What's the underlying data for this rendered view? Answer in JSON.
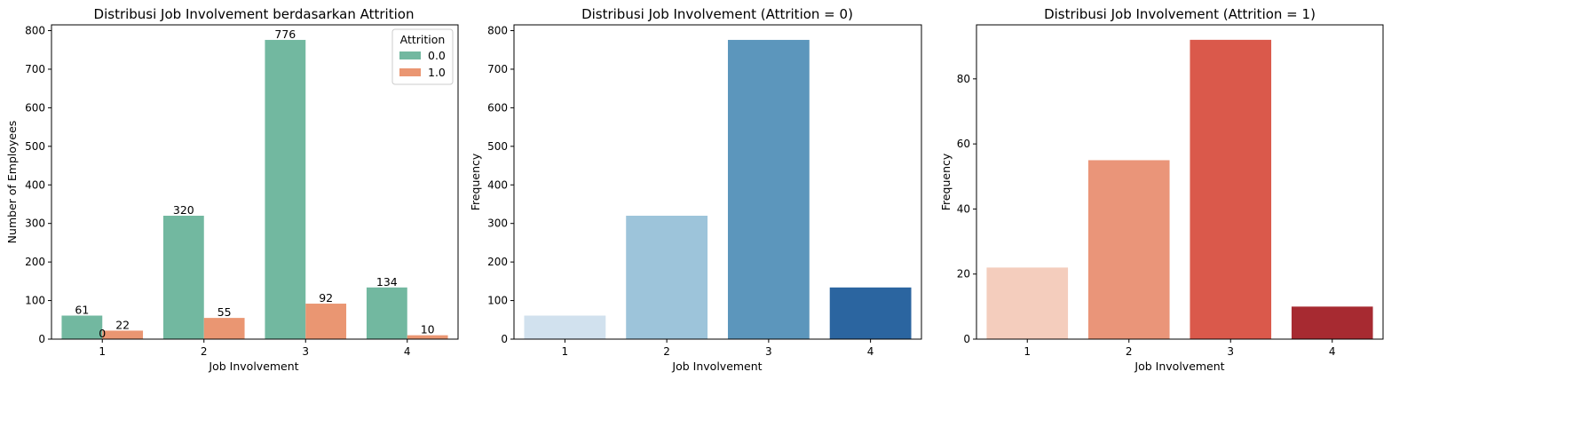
{
  "chart_data": [
    {
      "type": "bar",
      "title": "Distribusi Job Involvement berdasarkan Attrition",
      "xlabel": "Job Involvement",
      "ylabel": "Number of Employees",
      "categories": [
        "1",
        "2",
        "3",
        "4"
      ],
      "yticks": [
        0,
        100,
        200,
        300,
        400,
        500,
        600,
        700,
        800
      ],
      "ylim": [
        0,
        815
      ],
      "legend": {
        "title": "Attrition",
        "position": "top-right"
      },
      "series": [
        {
          "name": "0.0",
          "values": [
            61,
            320,
            776,
            134
          ],
          "color": "#72b8a0",
          "labels": [
            "61",
            "320",
            "776",
            "134"
          ]
        },
        {
          "name": "1.0",
          "values": [
            22,
            55,
            92,
            10
          ],
          "color": "#ea9672",
          "labels": [
            "22",
            "55",
            "92",
            "10"
          ]
        }
      ],
      "extra_label": "0"
    },
    {
      "type": "bar",
      "title": "Distribusi Job Involvement (Attrition = 0)",
      "xlabel": "Job Involvement",
      "ylabel": "Frequency",
      "categories": [
        "1",
        "2",
        "3",
        "4"
      ],
      "yticks": [
        0,
        100,
        200,
        300,
        400,
        500,
        600,
        700,
        800
      ],
      "ylim": [
        0,
        815
      ],
      "values": [
        61,
        320,
        776,
        134
      ],
      "colors": [
        "#d1e1ee",
        "#9dc4da",
        "#5c96bc",
        "#2b65a0"
      ]
    },
    {
      "type": "bar",
      "title": "Distribusi Job Involvement (Attrition = 1)",
      "xlabel": "Job Involvement",
      "ylabel": "Frequency",
      "categories": [
        "1",
        "2",
        "3",
        "4"
      ],
      "yticks": [
        0,
        20,
        40,
        60,
        80
      ],
      "ylim": [
        0,
        96.6
      ],
      "values": [
        22,
        55,
        92,
        10
      ],
      "colors": [
        "#f4cdbd",
        "#ea9579",
        "#da594b",
        "#a72a31"
      ]
    }
  ]
}
